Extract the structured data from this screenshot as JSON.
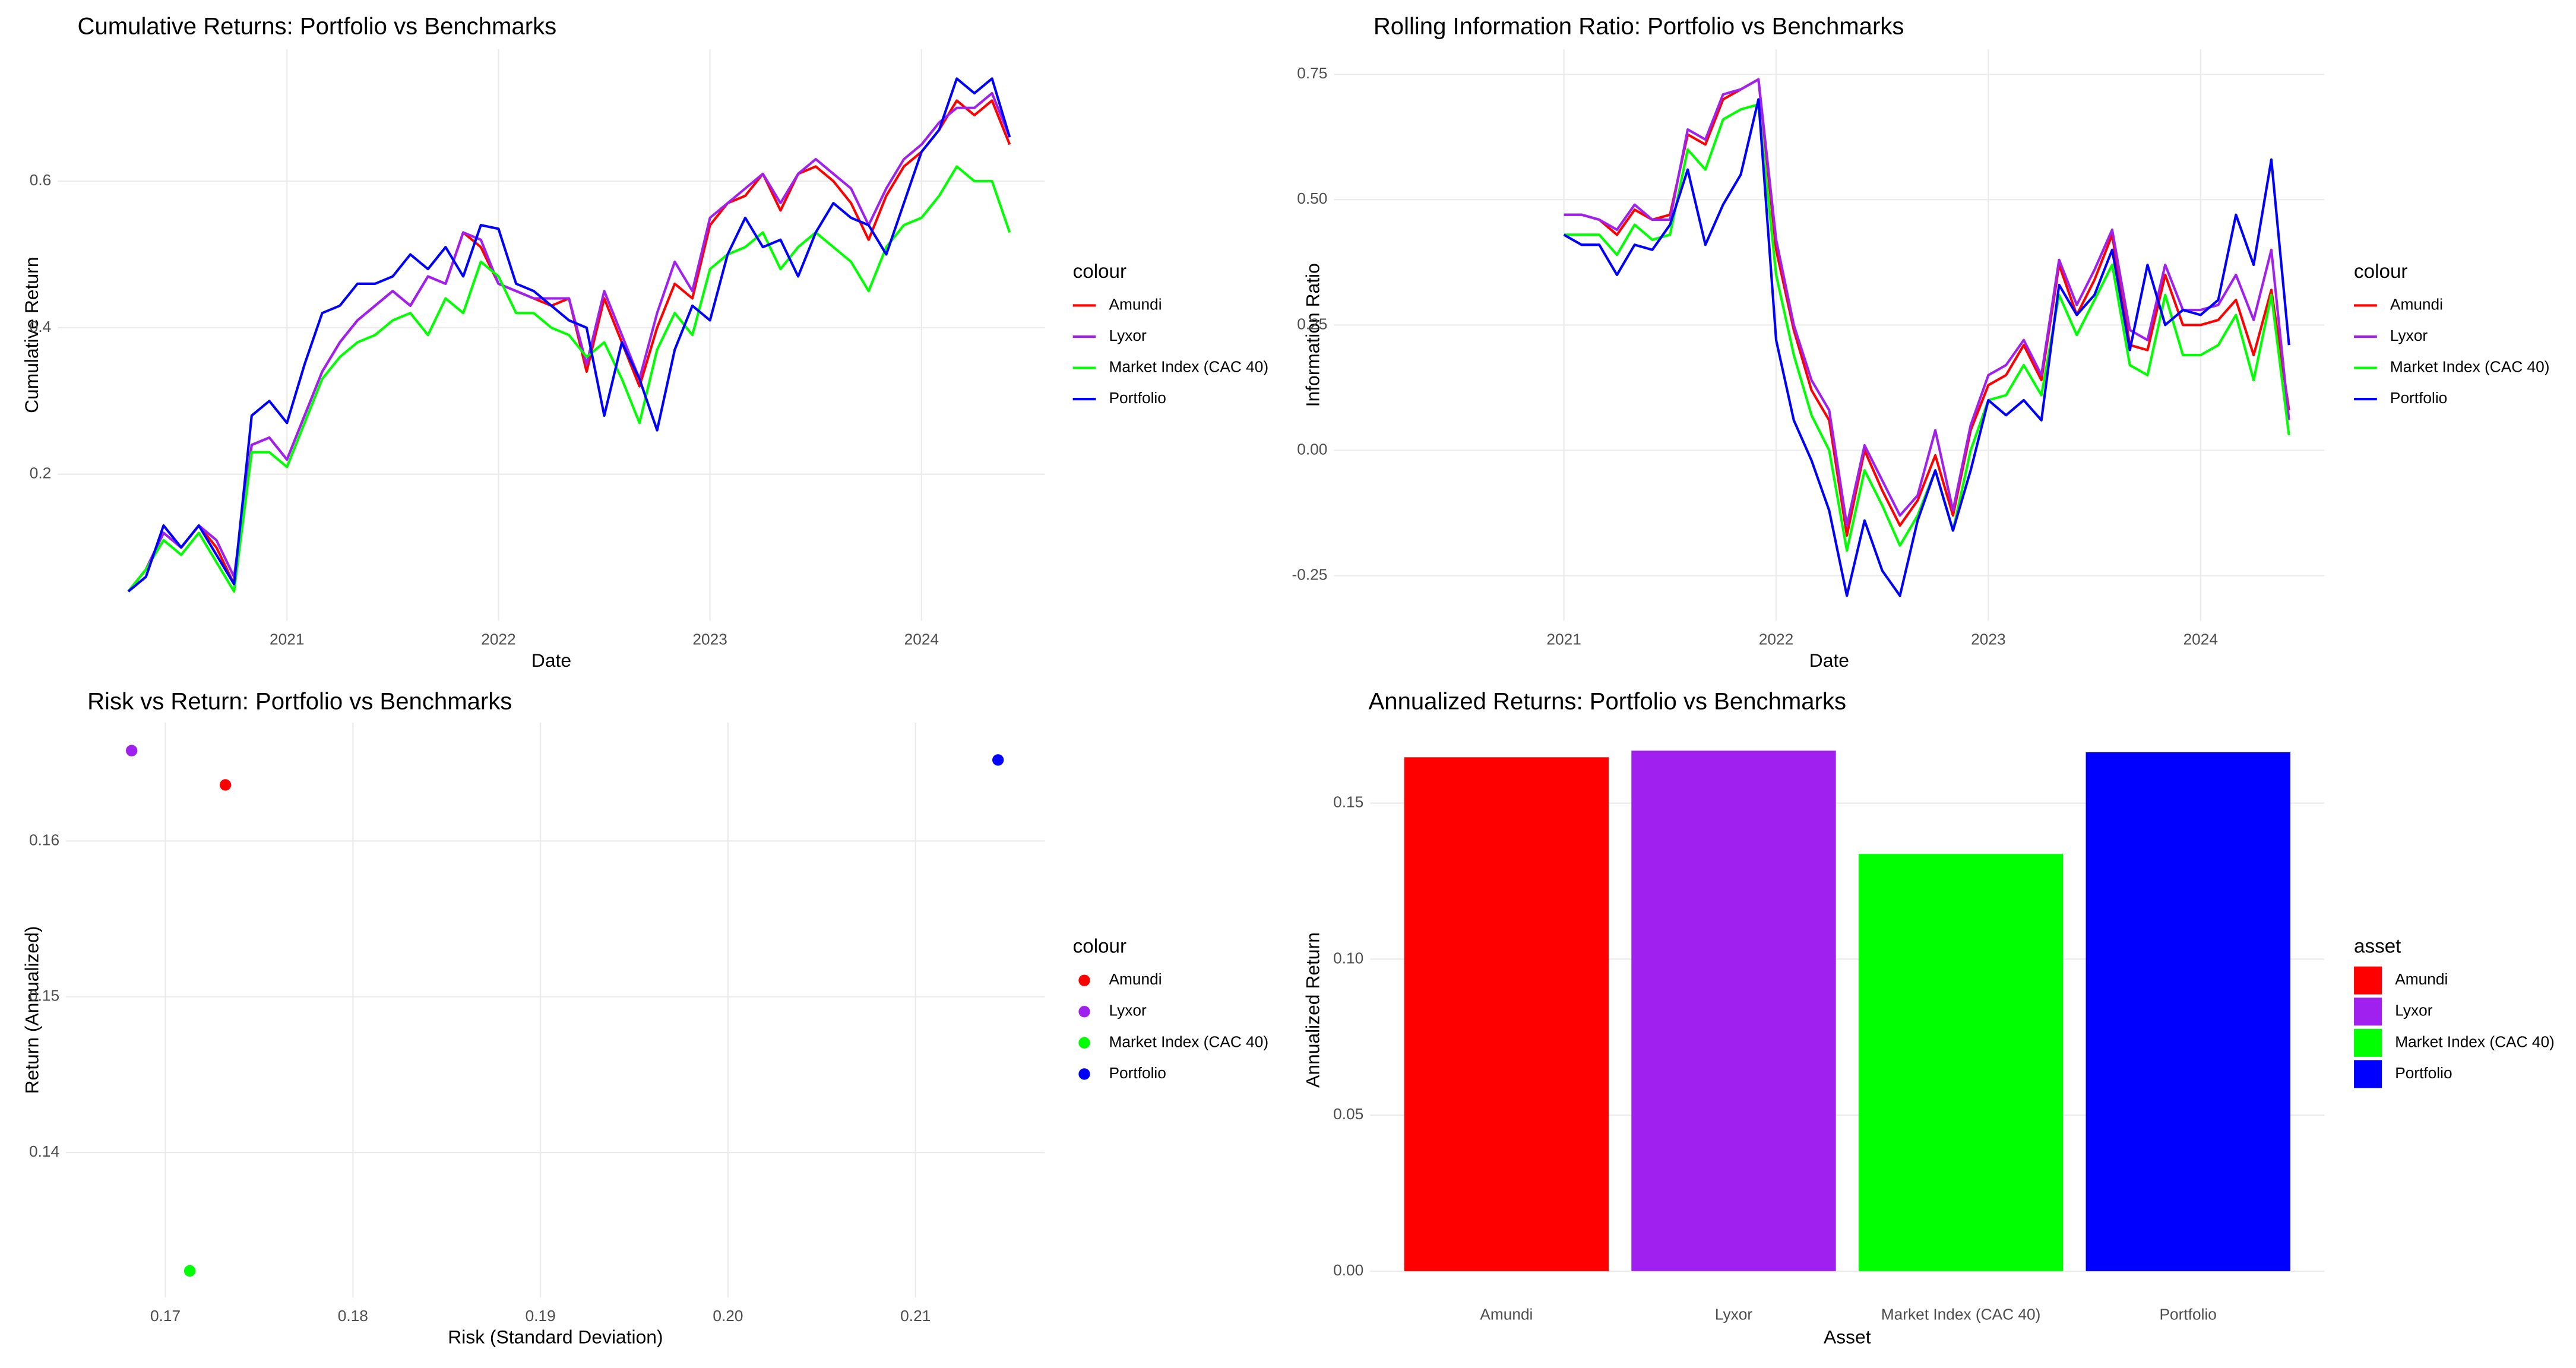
{
  "chart_data": [
    {
      "type": "line",
      "title": "Cumulative Returns: Portfolio vs Benchmarks",
      "x_label": "Date",
      "y_label": "Cumulative Return",
      "legend_title": "colour",
      "legend_position": "right",
      "grid": true,
      "x": [
        "2020-04",
        "2020-05",
        "2020-06",
        "2020-07",
        "2020-08",
        "2020-09",
        "2020-10",
        "2020-11",
        "2020-12",
        "2021-01",
        "2021-02",
        "2021-03",
        "2021-04",
        "2021-05",
        "2021-06",
        "2021-07",
        "2021-08",
        "2021-09",
        "2021-10",
        "2021-11",
        "2021-12",
        "2022-01",
        "2022-02",
        "2022-03",
        "2022-04",
        "2022-05",
        "2022-06",
        "2022-07",
        "2022-08",
        "2022-09",
        "2022-10",
        "2022-11",
        "2022-12",
        "2023-01",
        "2023-02",
        "2023-03",
        "2023-04",
        "2023-05",
        "2023-06",
        "2023-07",
        "2023-08",
        "2023-09",
        "2023-10",
        "2023-11",
        "2023-12",
        "2024-01",
        "2024-02",
        "2024-03",
        "2024-04",
        "2024-05",
        "2024-06"
      ],
      "xlim": [
        "2019-12",
        "2024-08"
      ],
      "xticks": [
        {
          "value": "2021-01",
          "label": "2021"
        },
        {
          "value": "2022-01",
          "label": "2022"
        },
        {
          "value": "2023-01",
          "label": "2023"
        },
        {
          "value": "2024-01",
          "label": "2024"
        }
      ],
      "ylim": [
        0,
        0.78
      ],
      "yticks": [
        0.2,
        0.4,
        0.6
      ],
      "series": [
        {
          "name": "Amundi",
          "color": "#ff0000",
          "values": [
            0.04,
            0.07,
            0.12,
            0.1,
            0.13,
            0.1,
            0.05,
            0.24,
            0.25,
            0.22,
            0.28,
            0.34,
            0.38,
            0.41,
            0.43,
            0.45,
            0.43,
            0.47,
            0.46,
            0.53,
            0.51,
            0.46,
            0.45,
            0.44,
            0.43,
            0.44,
            0.34,
            0.44,
            0.38,
            0.32,
            0.4,
            0.46,
            0.44,
            0.54,
            0.57,
            0.58,
            0.61,
            0.56,
            0.61,
            0.62,
            0.6,
            0.57,
            0.52,
            0.58,
            0.62,
            0.64,
            0.67,
            0.71,
            0.69,
            0.71,
            0.65
          ]
        },
        {
          "name": "Lyxor",
          "color": "#a020f0",
          "values": [
            0.04,
            0.07,
            0.12,
            0.1,
            0.13,
            0.11,
            0.06,
            0.24,
            0.25,
            0.22,
            0.28,
            0.34,
            0.38,
            0.41,
            0.43,
            0.45,
            0.43,
            0.47,
            0.46,
            0.53,
            0.52,
            0.46,
            0.45,
            0.44,
            0.44,
            0.44,
            0.35,
            0.45,
            0.39,
            0.33,
            0.42,
            0.49,
            0.45,
            0.55,
            0.57,
            0.59,
            0.61,
            0.57,
            0.61,
            0.63,
            0.61,
            0.59,
            0.54,
            0.59,
            0.63,
            0.65,
            0.68,
            0.7,
            0.7,
            0.72,
            0.66
          ]
        },
        {
          "name": "Market Index (CAC 40)",
          "color": "#00ff00",
          "values": [
            0.04,
            0.07,
            0.11,
            0.09,
            0.12,
            0.08,
            0.04,
            0.23,
            0.23,
            0.21,
            0.27,
            0.33,
            0.36,
            0.38,
            0.39,
            0.41,
            0.42,
            0.39,
            0.44,
            0.42,
            0.49,
            0.47,
            0.42,
            0.42,
            0.4,
            0.39,
            0.36,
            0.38,
            0.33,
            0.27,
            0.37,
            0.42,
            0.39,
            0.48,
            0.5,
            0.51,
            0.53,
            0.48,
            0.51,
            0.53,
            0.51,
            0.49,
            0.45,
            0.51,
            0.54,
            0.55,
            0.58,
            0.62,
            0.6,
            0.6,
            0.53
          ]
        },
        {
          "name": "Portfolio",
          "color": "#0000ff",
          "values": [
            0.04,
            0.06,
            0.13,
            0.1,
            0.13,
            0.09,
            0.05,
            0.28,
            0.3,
            0.27,
            0.35,
            0.42,
            0.43,
            0.46,
            0.46,
            0.47,
            0.5,
            0.48,
            0.51,
            0.47,
            0.54,
            0.535,
            0.46,
            0.45,
            0.43,
            0.41,
            0.4,
            0.28,
            0.38,
            0.33,
            0.26,
            0.37,
            0.43,
            0.41,
            0.5,
            0.55,
            0.51,
            0.52,
            0.47,
            0.53,
            0.57,
            0.55,
            0.54,
            0.5,
            0.57,
            0.64,
            0.67,
            0.74,
            0.72,
            0.74,
            0.66
          ]
        }
      ]
    },
    {
      "type": "line",
      "title": "Rolling Information Ratio: Portfolio vs Benchmarks",
      "x_label": "Date",
      "y_label": "Information Ratio",
      "legend_title": "colour",
      "legend_position": "right",
      "grid": true,
      "x": [
        "2021-01",
        "2021-02",
        "2021-03",
        "2021-04",
        "2021-05",
        "2021-06",
        "2021-07",
        "2021-08",
        "2021-09",
        "2021-10",
        "2021-11",
        "2021-12",
        "2022-01",
        "2022-02",
        "2022-03",
        "2022-04",
        "2022-05",
        "2022-06",
        "2022-07",
        "2022-08",
        "2022-09",
        "2022-10",
        "2022-11",
        "2022-12",
        "2023-01",
        "2023-02",
        "2023-03",
        "2023-04",
        "2023-05",
        "2023-06",
        "2023-07",
        "2023-08",
        "2023-09",
        "2023-10",
        "2023-11",
        "2023-12",
        "2024-01",
        "2024-02",
        "2024-03",
        "2024-04",
        "2024-05",
        "2024-06"
      ],
      "xlim": [
        "2019-12",
        "2024-08"
      ],
      "xticks": [
        {
          "value": "2021-01",
          "label": "2021"
        },
        {
          "value": "2022-01",
          "label": "2022"
        },
        {
          "value": "2023-01",
          "label": "2023"
        },
        {
          "value": "2024-01",
          "label": "2024"
        }
      ],
      "ylim": [
        -0.34,
        0.8
      ],
      "yticks": [
        -0.25,
        {
          "value": 0,
          "label": "0.00"
        },
        0.25,
        {
          "value": 0.5,
          "label": "0.50"
        },
        0.75
      ],
      "series": [
        {
          "name": "Amundi",
          "color": "#ff0000",
          "values": [
            0.47,
            0.47,
            0.46,
            0.43,
            0.48,
            0.46,
            0.47,
            0.63,
            0.61,
            0.7,
            0.72,
            0.74,
            0.4,
            0.24,
            0.12,
            0.06,
            -0.17,
            0.0,
            -0.08,
            -0.15,
            -0.1,
            -0.01,
            -0.13,
            0.04,
            0.13,
            0.15,
            0.21,
            0.14,
            0.37,
            0.27,
            0.34,
            0.43,
            0.21,
            0.2,
            0.35,
            0.25,
            0.25,
            0.26,
            0.3,
            0.19,
            0.32,
            0.08
          ]
        },
        {
          "name": "Lyxor",
          "color": "#a020f0",
          "values": [
            0.47,
            0.47,
            0.46,
            0.44,
            0.49,
            0.46,
            0.46,
            0.64,
            0.62,
            0.71,
            0.72,
            0.74,
            0.42,
            0.25,
            0.14,
            0.08,
            -0.15,
            0.01,
            -0.06,
            -0.13,
            -0.09,
            0.04,
            -0.12,
            0.05,
            0.15,
            0.17,
            0.22,
            0.15,
            0.38,
            0.29,
            0.36,
            0.44,
            0.24,
            0.22,
            0.37,
            0.28,
            0.28,
            0.29,
            0.35,
            0.26,
            0.4,
            0.06
          ]
        },
        {
          "name": "Market Index (CAC 40)",
          "color": "#00ff00",
          "values": [
            0.43,
            0.43,
            0.43,
            0.39,
            0.45,
            0.42,
            0.43,
            0.6,
            0.56,
            0.66,
            0.68,
            0.69,
            0.35,
            0.19,
            0.07,
            0.0,
            -0.2,
            -0.04,
            -0.11,
            -0.19,
            -0.13,
            -0.04,
            -0.16,
            0.0,
            0.1,
            0.11,
            0.17,
            0.11,
            0.31,
            0.23,
            0.3,
            0.37,
            0.17,
            0.15,
            0.31,
            0.19,
            0.19,
            0.21,
            0.27,
            0.14,
            0.31,
            0.03
          ]
        },
        {
          "name": "Portfolio",
          "color": "#0000ff",
          "values": [
            0.43,
            0.41,
            0.41,
            0.35,
            0.41,
            0.4,
            0.45,
            0.56,
            0.41,
            0.49,
            0.55,
            0.7,
            0.22,
            0.06,
            -0.02,
            -0.12,
            -0.29,
            -0.14,
            -0.24,
            -0.29,
            -0.14,
            -0.04,
            -0.16,
            -0.04,
            0.1,
            0.07,
            0.1,
            0.06,
            0.33,
            0.27,
            0.31,
            0.4,
            0.2,
            0.37,
            0.25,
            0.28,
            0.27,
            0.3,
            0.47,
            0.37,
            0.58,
            0.21
          ]
        }
      ]
    },
    {
      "type": "scatter",
      "title": "Risk vs Return: Portfolio vs Benchmarks",
      "x_label": "Risk (Standard Deviation)",
      "y_label": "Return (Annualized)",
      "legend_title": "colour",
      "legend_position": "right",
      "grid": true,
      "xlim": [
        0.1647,
        0.2169
      ],
      "xticks": [
        0.17,
        0.18,
        0.19,
        {
          "value": 0.2,
          "label": "0.20"
        },
        0.21
      ],
      "ylim": [
        0.1307,
        0.1676
      ],
      "yticks": [
        0.14,
        0.15,
        0.16
      ],
      "series": [
        {
          "name": "Amundi",
          "color": "#ff0000",
          "x": [
            0.1732
          ],
          "values": [
            0.1636
          ]
        },
        {
          "name": "Lyxor",
          "color": "#a020f0",
          "x": [
            0.1682
          ],
          "values": [
            0.1658
          ]
        },
        {
          "name": "Market Index (CAC 40)",
          "color": "#00ff00",
          "x": [
            0.1713
          ],
          "values": [
            0.1324
          ]
        },
        {
          "name": "Portfolio",
          "color": "#0000ff",
          "x": [
            0.2144
          ],
          "values": [
            0.1652
          ]
        }
      ]
    },
    {
      "type": "bar",
      "title": "Annualized Returns: Portfolio vs Benchmarks",
      "x_label": "Asset",
      "y_label": "Annualized Return",
      "legend_title": "asset",
      "legend_position": "right",
      "grid": true,
      "categories": [
        "Amundi",
        "Lyxor",
        "Market Index (CAC 40)",
        "Portfolio"
      ],
      "values": [
        0.1647,
        0.1668,
        0.1337,
        0.1663
      ],
      "colors": [
        "#ff0000",
        "#a020f0",
        "#00ff00",
        "#0000ff"
      ],
      "ylim": [
        -0.0084,
        0.1758
      ],
      "yticks": [
        {
          "value": 0,
          "label": "0.00"
        },
        0.05,
        {
          "value": 0.1,
          "label": "0.10"
        },
        0.15
      ]
    }
  ]
}
